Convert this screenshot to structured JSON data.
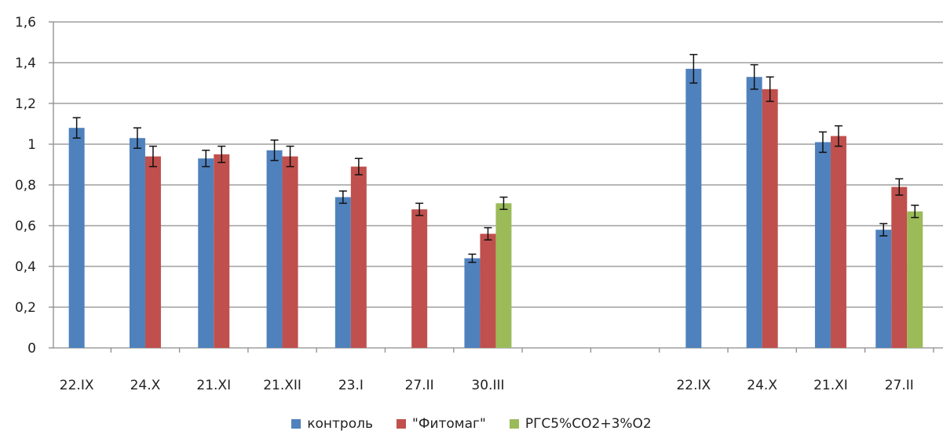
{
  "chart_data": {
    "type": "bar",
    "title": "",
    "xlabel": "",
    "ylabel": "",
    "ylim": [
      0,
      1.6
    ],
    "ytick_labels": [
      "0",
      "0,2",
      "0,4",
      "0,6",
      "0,8",
      "1",
      "1,2",
      "1,4",
      "1,6"
    ],
    "grid": true,
    "legend_position": "bottom",
    "categories": [
      "22.IX",
      "24.X",
      "21.XI",
      "21.XII",
      "23.I",
      "27.II",
      "30.III",
      "",
      "",
      "22.IX",
      "24.X",
      "21.XI",
      "27.II"
    ],
    "series": [
      {
        "name": "контроль",
        "color": "#4f81bd",
        "values": [
          1.08,
          1.03,
          0.93,
          0.97,
          0.74,
          null,
          0.44,
          null,
          null,
          1.37,
          1.33,
          1.01,
          0.58
        ],
        "errors": [
          0.05,
          0.05,
          0.04,
          0.05,
          0.03,
          null,
          0.02,
          null,
          null,
          0.07,
          0.06,
          0.05,
          0.03
        ]
      },
      {
        "name": "\"Фитомаг\"",
        "color": "#c0504d",
        "values": [
          null,
          0.94,
          0.95,
          0.94,
          0.89,
          0.68,
          0.56,
          null,
          null,
          null,
          1.27,
          1.04,
          0.79
        ],
        "errors": [
          null,
          0.05,
          0.04,
          0.05,
          0.04,
          0.03,
          0.03,
          null,
          null,
          null,
          0.06,
          0.05,
          0.04
        ]
      },
      {
        "name": "РГС5%СО2+3%О2",
        "color": "#9bbb59",
        "values": [
          null,
          null,
          null,
          null,
          null,
          null,
          0.71,
          null,
          null,
          null,
          null,
          null,
          0.67
        ],
        "errors": [
          null,
          null,
          null,
          null,
          null,
          null,
          0.03,
          null,
          null,
          null,
          null,
          null,
          0.03
        ]
      }
    ]
  }
}
